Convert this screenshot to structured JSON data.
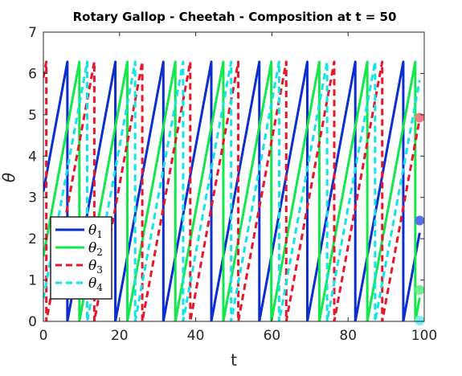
{
  "chart_data": {
    "type": "line",
    "title": "Rotary Gallop - Cheetah - Composition at t = 50",
    "xlabel": "t",
    "ylabel": "θ",
    "xlim": [
      0,
      100
    ],
    "ylim": [
      0,
      7
    ],
    "xticks": [
      0,
      20,
      40,
      60,
      80,
      100
    ],
    "yticks": [
      0,
      1,
      2,
      3,
      4,
      5,
      6,
      7
    ],
    "grid": false,
    "box": true,
    "legend_position": "bottom-left",
    "wrap_value": 6.2832,
    "period": 12.6,
    "t_end": 98.8,
    "series": [
      {
        "name": "θ",
        "subscript": "1",
        "color": "#0b2ed0",
        "dash": "solid",
        "y_at_zero": 3.1416,
        "end_marker": 2.44,
        "end_marker_color": "#5a6ee8"
      },
      {
        "name": "θ",
        "subscript": "2",
        "color": "#12e84a",
        "dash": "solid",
        "y_at_zero": 1.5708,
        "end_marker": 0.76,
        "end_marker_color": "#6ef08e"
      },
      {
        "name": "θ",
        "subscript": "3",
        "color": "#e5172b",
        "dash": "dashed",
        "y_at_zero": 5.9,
        "end_marker": 4.93,
        "end_marker_color": "#ee7c86"
      },
      {
        "name": "θ",
        "subscript": "4",
        "color": "#12e4e8",
        "dash": "dashed",
        "y_at_zero": 0.55,
        "end_marker": 0.02,
        "end_marker_color": "#78eef0"
      }
    ]
  }
}
